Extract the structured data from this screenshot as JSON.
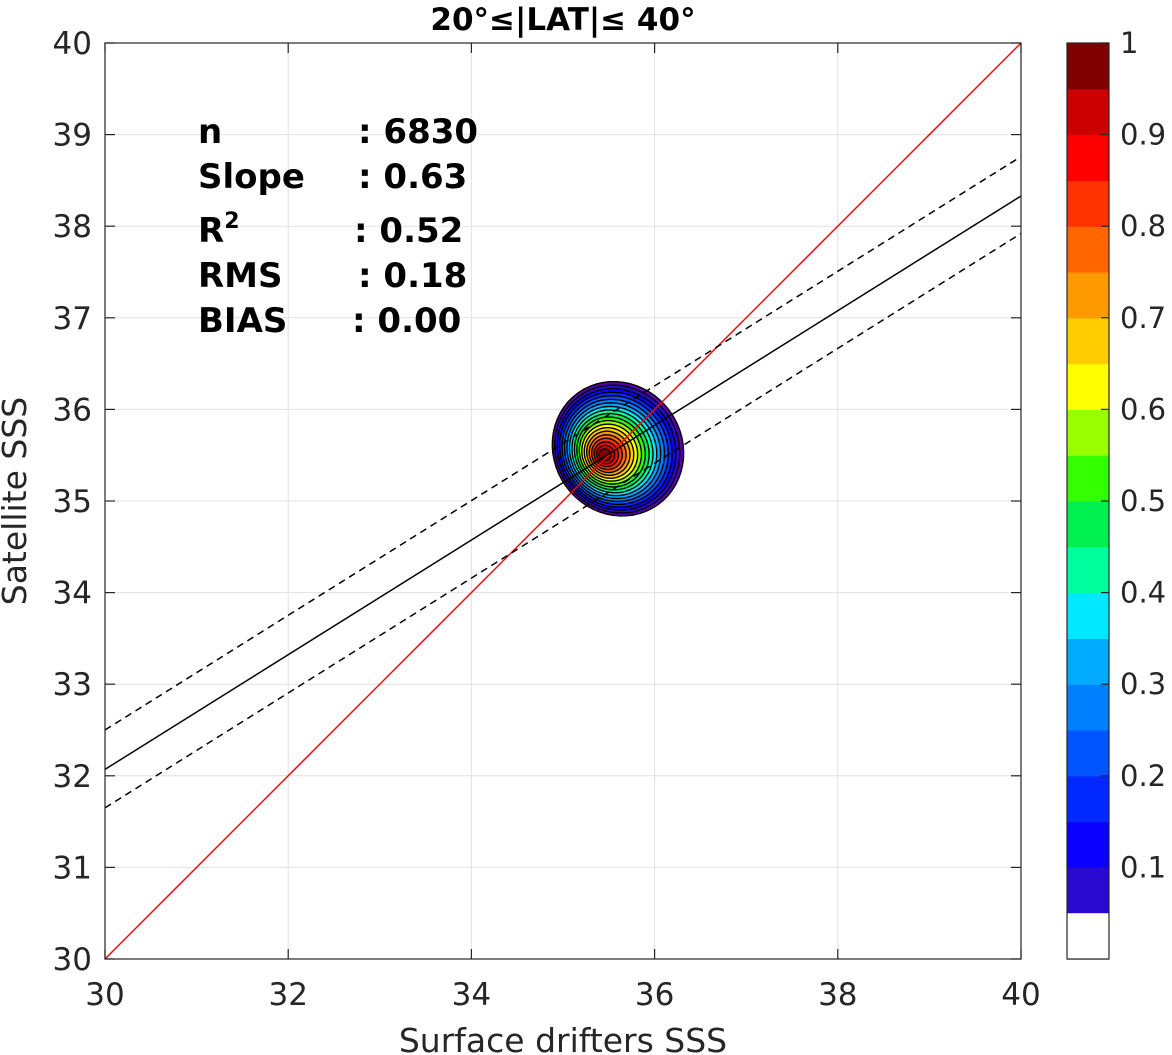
{
  "chart_data": {
    "type": "scatter",
    "title": "20°≤|LAT|≤ 40°",
    "xlabel": "Surface drifters SSS",
    "ylabel": "Satellite SSS",
    "xlim": [
      30,
      40
    ],
    "ylim": [
      30,
      40
    ],
    "xticks": [
      "30",
      "32",
      "34",
      "36",
      "38",
      "40"
    ],
    "yticks": [
      "30",
      "31",
      "32",
      "33",
      "34",
      "35",
      "36",
      "37",
      "38",
      "39",
      "40"
    ],
    "grid": true,
    "density_peak": {
      "x": 35.45,
      "y": 35.5
    },
    "density_contour_levels": [
      0.05,
      0.1,
      0.15,
      0.2,
      0.25,
      0.3,
      0.35,
      0.4,
      0.45,
      0.5,
      0.55,
      0.6,
      0.65,
      0.7,
      0.75,
      0.8,
      0.85,
      0.9,
      0.95,
      1.0
    ],
    "stats": [
      {
        "label": "n",
        "value": ": 6830"
      },
      {
        "label": "Slope",
        "value": ": 0.63"
      },
      {
        "label": "R",
        "sup": "2",
        "value": ": 0.52"
      },
      {
        "label": "RMS",
        "value": ": 0.18"
      },
      {
        "label": "BIAS",
        "value": ": 0.00"
      }
    ],
    "lines": [
      {
        "kind": "identity",
        "color": "#ff0000",
        "x": [
          30,
          40
        ],
        "y": [
          30,
          40
        ]
      },
      {
        "kind": "fit",
        "color": "#000000",
        "style": "solid",
        "x": [
          30,
          40
        ],
        "y": [
          32.07,
          38.33
        ]
      },
      {
        "kind": "fit-upper",
        "color": "#000000",
        "style": "dashed",
        "x": [
          30,
          40
        ],
        "y": [
          32.5,
          38.76
        ]
      },
      {
        "kind": "fit-lower",
        "color": "#000000",
        "style": "dashed",
        "x": [
          30,
          40
        ],
        "y": [
          31.65,
          37.92
        ]
      }
    ],
    "colorbar": {
      "ticks": [
        "0.1",
        "0.2",
        "0.3",
        "0.4",
        "0.5",
        "0.6",
        "0.7",
        "0.8",
        "0.9",
        "1"
      ],
      "range": [
        0,
        1
      ],
      "levels": 20,
      "colors": [
        "#ffffff",
        "#5a00aa",
        "#2a0ad0",
        "#0a00ff",
        "#0028ff",
        "#0055ff",
        "#0080ff",
        "#00aaff",
        "#00e8ff",
        "#00ff9f",
        "#00f050",
        "#33ff00",
        "#99ff00",
        "#ffff00",
        "#ffcc00",
        "#ff9900",
        "#ff6600",
        "#ff3300",
        "#ff0000",
        "#cc0000",
        "#800000"
      ]
    }
  }
}
